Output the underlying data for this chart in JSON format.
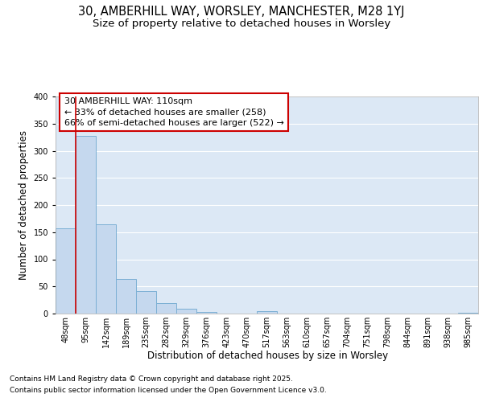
{
  "title_line1": "30, AMBERHILL WAY, WORSLEY, MANCHESTER, M28 1YJ",
  "title_line2": "Size of property relative to detached houses in Worsley",
  "xlabel": "Distribution of detached houses by size in Worsley",
  "ylabel": "Number of detached properties",
  "categories": [
    "48sqm",
    "95sqm",
    "142sqm",
    "189sqm",
    "235sqm",
    "282sqm",
    "329sqm",
    "376sqm",
    "423sqm",
    "470sqm",
    "517sqm",
    "563sqm",
    "610sqm",
    "657sqm",
    "704sqm",
    "751sqm",
    "798sqm",
    "844sqm",
    "891sqm",
    "938sqm",
    "985sqm"
  ],
  "values": [
    157,
    328,
    165,
    63,
    42,
    20,
    9,
    3,
    0,
    0,
    4,
    0,
    0,
    0,
    0,
    0,
    0,
    0,
    0,
    0,
    2
  ],
  "bar_color": "#c5d8ee",
  "bar_edge_color": "#7bafd4",
  "red_line_x": 0.5,
  "annotation_title": "30 AMBERHILL WAY: 110sqm",
  "annotation_line1": "← 33% of detached houses are smaller (258)",
  "annotation_line2": "66% of semi-detached houses are larger (522) →",
  "annotation_box_color": "#ffffff",
  "annotation_box_edge": "#cc0000",
  "red_line_color": "#cc0000",
  "ylim": [
    0,
    400
  ],
  "yticks": [
    0,
    50,
    100,
    150,
    200,
    250,
    300,
    350,
    400
  ],
  "footer_line1": "Contains HM Land Registry data © Crown copyright and database right 2025.",
  "footer_line2": "Contains public sector information licensed under the Open Government Licence v3.0.",
  "bg_color": "#ffffff",
  "plot_bg_color": "#dce8f5",
  "grid_color": "#ffffff",
  "title_fontsize": 10.5,
  "subtitle_fontsize": 9.5,
  "ylabel_fontsize": 8.5,
  "xlabel_fontsize": 8.5,
  "tick_fontsize": 7,
  "footer_fontsize": 6.5,
  "ann_fontsize": 8
}
